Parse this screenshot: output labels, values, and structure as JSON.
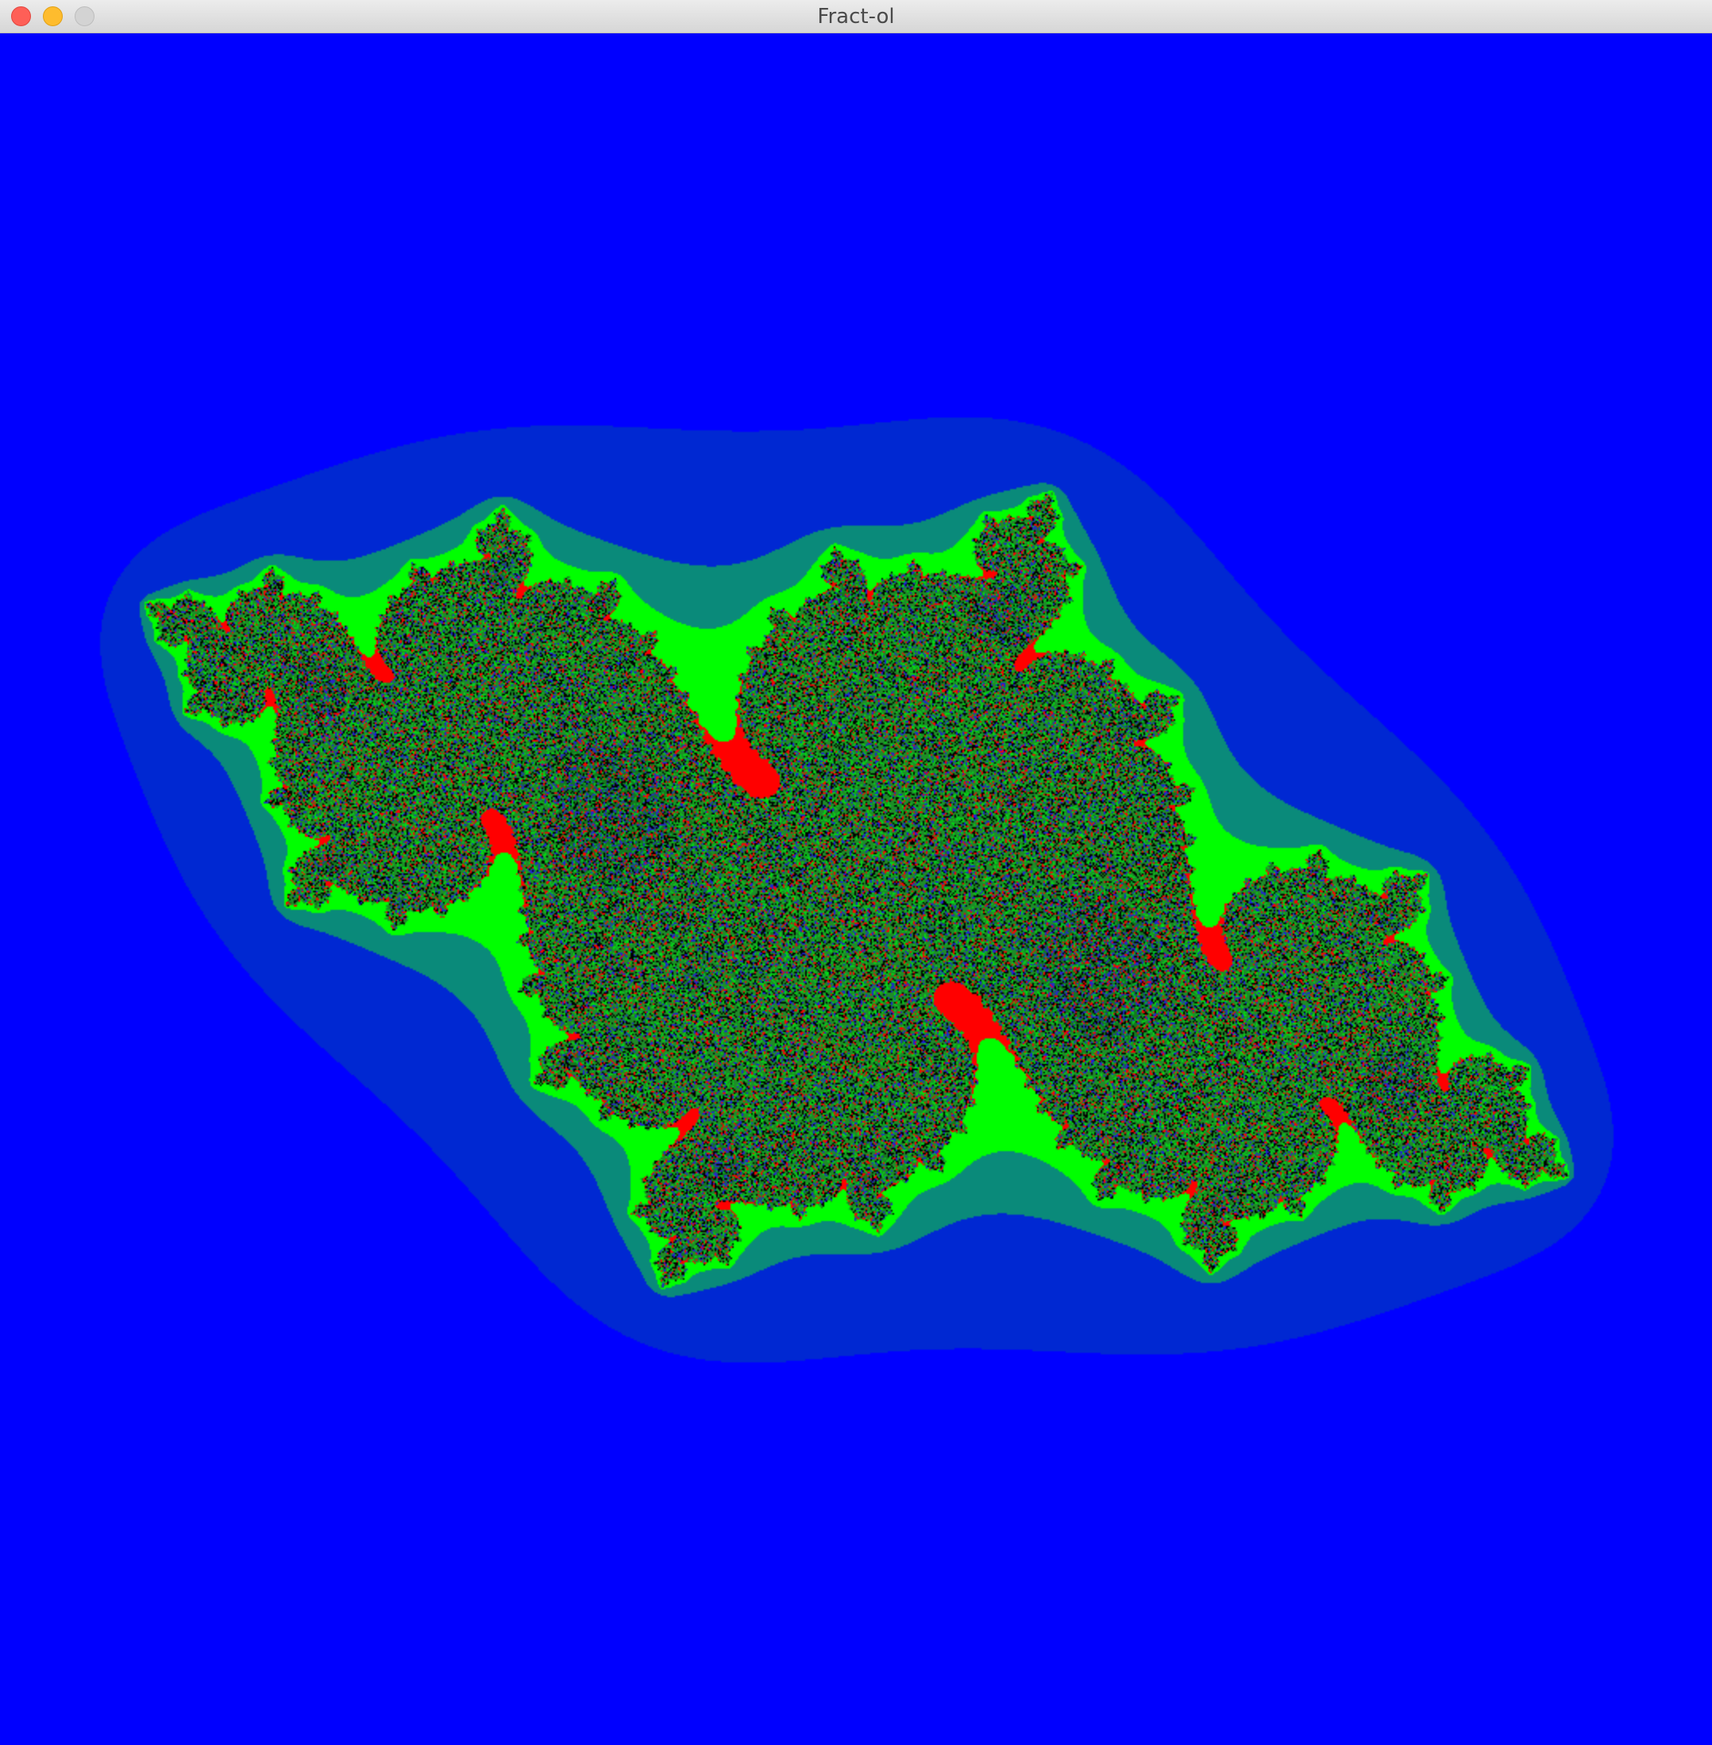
{
  "window": {
    "title": "Fract-ol",
    "controls": {
      "close": "close-icon",
      "minimize": "minimize-icon",
      "zoom": "zoom-icon"
    }
  },
  "fractal": {
    "type": "julia",
    "colors": {
      "background": "#0000ff",
      "halo_inner": "#00ff00",
      "halo_outer": "#0a8a7a",
      "accent": "#ff0000",
      "interior": "#000000"
    }
  }
}
